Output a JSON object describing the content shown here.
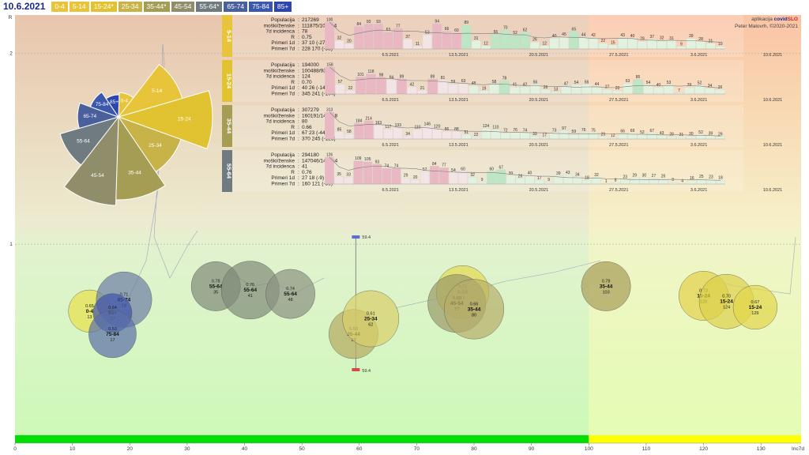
{
  "header": {
    "date": "10.6.2021",
    "age_groups": [
      {
        "label": "0-4",
        "color": "#e7c43a"
      },
      {
        "label": "5-14",
        "color": "#e7c43a"
      },
      {
        "label": "15-24*",
        "color": "#e1c231"
      },
      {
        "label": "25-34",
        "color": "#c7b348"
      },
      {
        "label": "35-44*",
        "color": "#a69d55"
      },
      {
        "label": "45-54",
        "color": "#8f8d6a"
      },
      {
        "label": "55-64*",
        "color": "#6f7b80"
      },
      {
        "label": "65-74",
        "color": "#4a609d"
      },
      {
        "label": "75-84",
        "color": "#3b58ad"
      },
      {
        "label": "85+",
        "color": "#2d46ad"
      }
    ]
  },
  "credit": {
    "prefix": "aplikacija",
    "brand_a": "covid",
    "brand_b": "SLO",
    "author": "Peter Malovrh, ©2020-2021"
  },
  "chart_data": [
    {
      "type": "pie",
      "title": "",
      "slices": [
        {
          "label": "0-4",
          "relative_radius": 0.22
        },
        {
          "label": "5-14",
          "relative_radius": 0.6
        },
        {
          "label": "15-24",
          "relative_radius": 0.85
        },
        {
          "label": "25-34",
          "relative_radius": 0.6
        },
        {
          "label": "35-44",
          "relative_radius": 0.75
        },
        {
          "label": "45-54",
          "relative_radius": 0.8
        },
        {
          "label": "55-64",
          "relative_radius": 0.55
        },
        {
          "label": "65-74",
          "relative_radius": 0.37
        },
        {
          "label": "75-84",
          "relative_radius": 0.27
        },
        {
          "label": "85+",
          "relative_radius": 0.2
        }
      ]
    },
    {
      "type": "bar",
      "panels": [
        {
          "group": "5-14",
          "color": "#e7c43a",
          "stats": [
            [
              "Populacija",
              "217269"
            ],
            [
              "moški/ženske",
              "111875/105394"
            ],
            [
              "7d incidenca",
              "78"
            ],
            [
              "R",
              "0.75"
            ],
            [
              "Primeri 1d",
              "37 10 (-27)"
            ],
            [
              "Primeri 7d",
              "228 170 (-58)"
            ]
          ],
          "values": [
            100,
            32,
            20,
            84,
            93,
            93,
            63,
            77,
            37,
            11,
            53,
            94,
            66,
            60,
            89,
            31,
            12,
            55,
            70,
            52,
            62,
            26,
            12,
            40,
            45,
            65,
            44,
            42,
            22,
            15,
            43,
            40,
            29,
            37,
            32,
            31,
            9,
            39,
            28,
            21,
            10
          ],
          "dates": [
            "6.5.2021",
            "13.5.2021",
            "20.5.2021",
            "27.5.2021",
            "3.6.2021",
            "10.6.2021"
          ]
        },
        {
          "group": "15-24",
          "color": "#e1c231",
          "stats": [
            [
              "Populacija",
              "194000"
            ],
            [
              "moški/ženske",
              "100488/93512"
            ],
            [
              "7d incidenca",
              "124"
            ],
            [
              "R",
              "0.70"
            ],
            [
              "Primeri 1d",
              "40 26 (-14)"
            ],
            [
              "Primeri 7d",
              "345 241 (-104)"
            ]
          ],
          "values": [
            158,
            57,
            22,
            101,
            118,
            98,
            84,
            89,
            42,
            21,
            89,
            81,
            59,
            63,
            48,
            19,
            58,
            78,
            41,
            42,
            56,
            26,
            13,
            47,
            54,
            56,
            44,
            27,
            20,
            63,
            85,
            54,
            40,
            53,
            7,
            39,
            52,
            34,
            26
          ],
          "dates": [
            "6.5.2021",
            "13.5.2021",
            "20.5.2021",
            "27.5.2021",
            "3.6.2021",
            "10.6.2021"
          ]
        },
        {
          "group": "35-44",
          "color": "#a69d55",
          "stats": [
            [
              "Populacija",
              "307279"
            ],
            [
              "moški/ženske",
              "160191/147088"
            ],
            [
              "7d incidenca",
              "80"
            ],
            [
              "R",
              "0.66"
            ],
            [
              "Primeri 1d",
              "67 23 (-44)"
            ],
            [
              "Primeri 7d",
              "370 245 (-125)"
            ]
          ],
          "values": [
            313,
            85,
            58,
            184,
            214,
            163,
            117,
            133,
            34,
            110,
            146,
            120,
            86,
            88,
            51,
            22,
            124,
            110,
            72,
            76,
            74,
            33,
            17,
            73,
            97,
            59,
            76,
            75,
            29,
            12,
            66,
            69,
            52,
            67,
            43,
            28,
            21,
            30,
            52,
            39,
            29
          ],
          "dates": [
            "6.5.2021",
            "13.5.2021",
            "20.5.2021",
            "27.5.2021",
            "3.6.2021",
            "10.6.2021"
          ]
        },
        {
          "group": "55-64",
          "color": "#6f7b80",
          "stats": [
            [
              "Populacija",
              "294180"
            ],
            [
              "moški/ženske",
              "147046/147134"
            ],
            [
              "7d incidenca",
              "41"
            ],
            [
              "R",
              "0.76"
            ],
            [
              "Primeri 1d",
              "27 18 (-9)"
            ],
            [
              "Primeri 7d",
              "160 121 (-39)"
            ]
          ],
          "values": [
            126,
            35,
            33,
            109,
            105,
            93,
            74,
            74,
            29,
            20,
            57,
            84,
            77,
            54,
            60,
            32,
            9,
            60,
            67,
            39,
            26,
            40,
            17,
            9,
            39,
            43,
            34,
            18,
            32,
            1,
            8,
            23,
            29,
            30,
            27,
            26,
            9,
            4,
            16,
            25,
            23,
            18
          ],
          "dates": [
            "6.5.2021",
            "13.5.2021",
            "20.5.2021",
            "27.5.2021",
            "3.6.2021",
            "10.6.2021"
          ]
        }
      ]
    },
    {
      "type": "scatter",
      "xlabel": "Inc7d",
      "ylabel": "R",
      "xlim": [
        0,
        137
      ],
      "ylim": [
        0,
        2.2
      ],
      "xticks": [
        0,
        10,
        20,
        30,
        40,
        50,
        60,
        70,
        80,
        90,
        100,
        110,
        120,
        130
      ],
      "yticks": [
        {
          "v": 1,
          "label": "1"
        },
        {
          "v": 2,
          "label": "2"
        }
      ],
      "highlight_band": {
        "from": 100,
        "to": 137
      },
      "range_marker": {
        "x": 59.4,
        "label_top": "59.4",
        "label_bottom": "59.4"
      },
      "bubbles": [
        {
          "group": "0-4",
          "r_value": "0.65",
          "x_value": "13",
          "x": 13,
          "y": 0.65,
          "size": 0.4,
          "color": "#e7e04a"
        },
        {
          "group": "65-74",
          "r_value": "0.71",
          "x_value": "19",
          "x": 19,
          "y": 0.71,
          "size": 0.78,
          "color": "#6c7da5"
        },
        {
          "group": "85+",
          "r_value": "0.64",
          "x_value": "17",
          "x": 17,
          "y": 0.64,
          "size": 0.3,
          "color": "#3d52ad"
        },
        {
          "group": "75-84",
          "r_value": "0.53",
          "x_value": "17",
          "x": 17,
          "y": 0.53,
          "size": 0.55,
          "color": "#5a6fa8"
        },
        {
          "group": "55-64",
          "r_value": "0.78",
          "x_value": "35",
          "x": 35,
          "y": 0.78,
          "size": 0.6,
          "color": "#7f8a78"
        },
        {
          "group": "55-64",
          "r_value": "0.76",
          "x_value": "41",
          "x": 41,
          "y": 0.76,
          "size": 0.85,
          "color": "#7f8a78"
        },
        {
          "group": "55-64",
          "r_value": "0.74",
          "x_value": "48",
          "x": 48,
          "y": 0.74,
          "size": 0.6,
          "color": "#8a9280"
        },
        {
          "group": "35-44",
          "r_value": "0.53",
          "x_value": "59",
          "x": 59,
          "y": 0.53,
          "size": 0.6,
          "color": "#b7aa5f"
        },
        {
          "group": "25-34",
          "r_value": "0.61",
          "x_value": "62",
          "x": 62,
          "y": 0.61,
          "size": 0.8,
          "color": "#d8cf6a"
        },
        {
          "group": "5-14",
          "r_value": "0.75",
          "x_value": "78",
          "x": 78,
          "y": 0.75,
          "size": 0.7,
          "color": "#e2d84f"
        },
        {
          "group": "45-54",
          "r_value": "0.69",
          "x_value": "77",
          "x": 77,
          "y": 0.69,
          "size": 0.85,
          "color": "#9a9a68"
        },
        {
          "group": "35-44",
          "r_value": "0.66",
          "x_value": "80",
          "x": 80,
          "y": 0.66,
          "size": 0.9,
          "color": "#b6ae6a"
        },
        {
          "group": "35-44",
          "r_value": "0.78",
          "x_value": "103",
          "x": 103,
          "y": 0.78,
          "size": 0.6,
          "color": "#a89c57"
        },
        {
          "group": "15-24",
          "r_value": "0.73",
          "x_value": "120",
          "x": 120,
          "y": 0.73,
          "size": 0.6,
          "color": "#e3d24a"
        },
        {
          "group": "15-24",
          "r_value": "0.70",
          "x_value": "124",
          "x": 124,
          "y": 0.7,
          "size": 0.75,
          "color": "#ddd04a"
        },
        {
          "group": "15-24",
          "r_value": "0.67",
          "x_value": "129",
          "x": 129,
          "y": 0.67,
          "size": 0.45,
          "color": "#e3d54a"
        }
      ]
    }
  ]
}
